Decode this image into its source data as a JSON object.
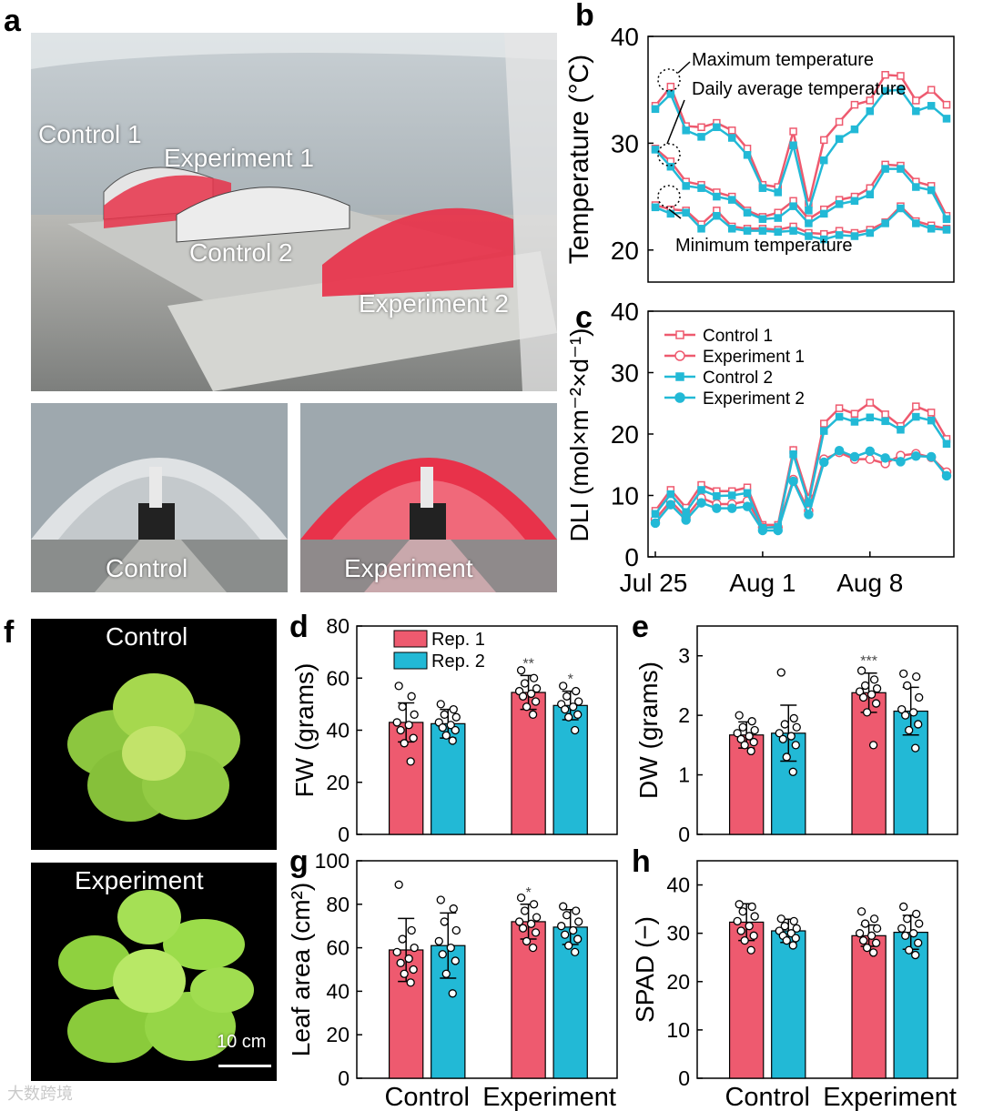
{
  "panel_labels": [
    "a",
    "b",
    "c",
    "d",
    "e",
    "f",
    "g",
    "h"
  ],
  "photos": {
    "greenhouse": {
      "captions": [
        "Control 1",
        "Experiment 1",
        "Control 2",
        "Experiment 2"
      ]
    },
    "tunnel_control": {
      "caption": "Control"
    },
    "tunnel_experiment": {
      "caption": "Experiment"
    },
    "lettuce_control": {
      "caption": "Control"
    },
    "lettuce_experiment": {
      "caption": "Experiment",
      "scale_bar": "10 cm"
    }
  },
  "colors": {
    "pink": "#ee5a6f",
    "cyan": "#22b9d6",
    "greenhouse_bg": "#9aa6ae",
    "red_cover": "#e8324a"
  },
  "watermark": "大数跨境",
  "chart_data": [
    {
      "id": "b",
      "type": "line",
      "ylabel": "Temperature (°C)",
      "ylim": [
        17,
        40
      ],
      "yticks": [
        20,
        30,
        40
      ],
      "x": [
        0,
        1,
        2,
        3,
        4,
        5,
        6,
        7,
        8,
        9,
        10,
        11,
        12,
        13,
        14,
        15,
        16,
        17,
        18,
        19
      ],
      "annotations": [
        "Maximum temperature",
        "Daily average temperature",
        "Minimum temperature"
      ],
      "series": [
        {
          "name": "Control 1 max",
          "values": [
            33.5,
            35.3,
            31.6,
            31.5,
            31.9,
            31.2,
            29.5,
            26.1,
            25.9,
            31.1,
            24.3,
            30.3,
            32.0,
            33.6,
            34.0,
            36.4,
            36.3,
            34.0,
            35.0,
            33.6
          ]
        },
        {
          "name": "Control 2 max",
          "values": [
            33.2,
            34.6,
            31.2,
            30.6,
            31.5,
            30.5,
            28.9,
            25.8,
            25.4,
            29.8,
            23.7,
            28.4,
            30.4,
            31.3,
            33.0,
            34.9,
            35.0,
            33.0,
            33.5,
            32.3
          ]
        },
        {
          "name": "Control 1 avg",
          "values": [
            29.5,
            28.3,
            26.4,
            26.1,
            25.4,
            25.0,
            23.7,
            23.1,
            23.5,
            24.6,
            22.9,
            23.8,
            24.7,
            25.0,
            25.8,
            28.0,
            27.9,
            26.4,
            26.0,
            23.2
          ]
        },
        {
          "name": "Control 2 avg",
          "values": [
            29.4,
            27.8,
            26.0,
            25.8,
            25.0,
            24.7,
            23.5,
            22.9,
            23.0,
            24.1,
            22.5,
            23.4,
            24.3,
            24.6,
            25.2,
            27.6,
            27.6,
            25.9,
            25.6,
            22.9
          ]
        },
        {
          "name": "Control 1 min",
          "values": [
            24.2,
            23.8,
            23.7,
            22.4,
            23.7,
            22.2,
            22.0,
            22.0,
            21.9,
            22.2,
            21.6,
            21.5,
            21.8,
            21.6,
            21.9,
            22.6,
            24.1,
            22.7,
            22.3,
            22.0
          ]
        },
        {
          "name": "Control 2 min",
          "values": [
            24.0,
            23.4,
            23.5,
            22.0,
            23.2,
            22.0,
            21.8,
            21.8,
            21.7,
            21.8,
            21.3,
            21.0,
            21.4,
            21.3,
            21.6,
            22.5,
            23.9,
            22.5,
            22.0,
            21.9
          ]
        }
      ]
    },
    {
      "id": "c",
      "type": "line",
      "ylabel": "DLI (mol×m⁻²×d⁻¹)",
      "ylim": [
        0,
        40
      ],
      "yticks": [
        0,
        10,
        20,
        30,
        40
      ],
      "x": [
        0,
        1,
        2,
        3,
        4,
        5,
        6,
        7,
        8,
        9,
        10,
        11,
        12,
        13,
        14,
        15,
        16,
        17,
        18,
        19
      ],
      "xtick_labels": [
        "Jul 25",
        "Aug 1",
        "Aug 8"
      ],
      "series": [
        {
          "name": "Control 1",
          "values": [
            7.5,
            10.9,
            8.0,
            11.7,
            10.7,
            10.7,
            11.3,
            5.2,
            5.2,
            17.4,
            9.5,
            21.7,
            24.2,
            23.3,
            25.1,
            23.2,
            21.3,
            24.5,
            23.5,
            19.2
          ]
        },
        {
          "name": "Experiment 1",
          "values": [
            6.1,
            9.1,
            6.5,
            9.6,
            8.6,
            8.6,
            9.1,
            4.8,
            4.8,
            12.6,
            7.5,
            15.9,
            17.0,
            15.9,
            15.9,
            15.2,
            16.5,
            16.8,
            16.2,
            13.8
          ]
        },
        {
          "name": "Control 2",
          "values": [
            7.0,
            10.2,
            7.3,
            10.9,
            9.9,
            10.0,
            10.4,
            4.7,
            4.9,
            16.7,
            8.8,
            20.5,
            22.8,
            22.0,
            22.7,
            22.1,
            20.7,
            22.8,
            22.2,
            18.4
          ]
        },
        {
          "name": "Experiment 2",
          "values": [
            5.5,
            8.5,
            6.0,
            8.8,
            7.9,
            7.9,
            8.2,
            4.3,
            4.3,
            12.3,
            6.9,
            15.4,
            17.3,
            16.3,
            17.2,
            16.1,
            15.5,
            16.4,
            16.3,
            13.2
          ]
        }
      ]
    },
    {
      "id": "e",
      "type": "bar",
      "ylabel": "FW (grams)",
      "ylim": [
        0,
        80
      ],
      "yticks": [
        0,
        20,
        40,
        60,
        80
      ],
      "categories": [
        "Control",
        "Experiment"
      ],
      "legend": [
        "Rep. 1",
        "Rep. 2"
      ],
      "series": [
        {
          "name": "Rep. 1",
          "values": [
            43,
            54.5
          ],
          "errors": [
            7.5,
            6.5
          ],
          "significance": [
            "",
            "**"
          ],
          "points": [
            [
              57,
              53,
              49,
              46,
              43,
              42,
              40,
              37,
              35,
              28
            ],
            [
              63,
              60,
              58,
              56,
              55,
              54,
              53,
              51,
              49,
              46
            ]
          ]
        },
        {
          "name": "Rep. 2",
          "values": [
            42.5,
            49.5
          ],
          "errors": [
            5.5,
            5.5
          ],
          "significance": [
            "",
            "*"
          ],
          "points": [
            [
              50,
              48,
              46,
              45,
              43,
              42,
              41,
              40,
              38,
              36
            ],
            [
              57,
              55,
              53,
              51,
              50,
              49,
              48,
              46,
              45,
              40
            ]
          ]
        }
      ]
    },
    {
      "id": "f",
      "type": "bar",
      "ylabel": "DW (grams)",
      "ylim": [
        0,
        3.5
      ],
      "yticks": [
        0,
        1,
        2,
        3
      ],
      "categories": [
        "Control",
        "Experiment"
      ],
      "series": [
        {
          "name": "Rep. 1",
          "values": [
            1.67,
            2.38
          ],
          "errors": [
            0.22,
            0.33
          ],
          "significance": [
            "",
            "***"
          ],
          "points": [
            [
              2.0,
              1.9,
              1.8,
              1.75,
              1.7,
              1.65,
              1.6,
              1.55,
              1.5,
              1.4
            ],
            [
              2.75,
              2.6,
              2.5,
              2.45,
              2.4,
              2.35,
              2.3,
              2.2,
              2.05,
              1.5
            ]
          ]
        },
        {
          "name": "Rep. 2",
          "values": [
            1.7,
            2.07
          ],
          "errors": [
            0.47,
            0.4
          ],
          "significance": [
            "",
            ""
          ],
          "points": [
            [
              2.72,
              1.95,
              1.85,
              1.8,
              1.7,
              1.65,
              1.6,
              1.5,
              1.3,
              1.05
            ],
            [
              2.7,
              2.65,
              2.5,
              2.3,
              2.1,
              2.05,
              2.0,
              1.85,
              1.75,
              1.45
            ]
          ]
        }
      ]
    },
    {
      "id": "g",
      "type": "bar",
      "ylabel": "Leaf area (cm²)",
      "ylim": [
        0,
        100
      ],
      "yticks": [
        0,
        20,
        40,
        60,
        80,
        100
      ],
      "categories": [
        "Control",
        "Experiment"
      ],
      "series": [
        {
          "name": "Rep. 1",
          "values": [
            59,
            72
          ],
          "errors": [
            14.5,
            8
          ],
          "significance": [
            "",
            "*"
          ],
          "points": [
            [
              89,
              68,
              64,
              60,
              58,
              55,
              53,
              50,
              48,
              44
            ],
            [
              83,
              80,
              77,
              74,
              72,
              71,
              69,
              67,
              63,
              60
            ]
          ]
        },
        {
          "name": "Rep. 2",
          "values": [
            61,
            69.5
          ],
          "errors": [
            15,
            8
          ],
          "significance": [
            "",
            ""
          ],
          "points": [
            [
              82,
              78,
              72,
              68,
              63,
              60,
              57,
              54,
              48,
              39
            ],
            [
              79,
              77,
              75,
              72,
              70,
              68,
              66,
              64,
              61,
              58
            ]
          ]
        }
      ]
    },
    {
      "id": "h",
      "type": "bar",
      "ylabel": "SPAD (−)",
      "ylim": [
        0,
        45
      ],
      "yticks": [
        0,
        10,
        20,
        30,
        40
      ],
      "categories": [
        "Control",
        "Experiment"
      ],
      "series": [
        {
          "name": "Rep. 1",
          "values": [
            32.3,
            29.5
          ],
          "errors": [
            3.8,
            2.2
          ],
          "significance": [
            "",
            ""
          ],
          "points": [
            [
              36,
              35.5,
              34.5,
              33.5,
              32.5,
              31.5,
              30.5,
              29.5,
              28.5,
              26.5
            ],
            [
              34.5,
              33,
              32,
              31,
              30,
              29.5,
              28.5,
              28,
              27,
              26
            ]
          ]
        },
        {
          "name": "Rep. 2",
          "values": [
            30.5,
            30.2
          ],
          "errors": [
            2.4,
            3.5
          ],
          "significance": [
            "",
            ""
          ],
          "points": [
            [
              33,
              32.5,
              31.5,
              31,
              30.5,
              30,
              29.5,
              29,
              28.5,
              27.5
            ],
            [
              35.5,
              34,
              33,
              32,
              31,
              30,
              29.5,
              28,
              26.5,
              25.5
            ]
          ]
        }
      ]
    }
  ]
}
